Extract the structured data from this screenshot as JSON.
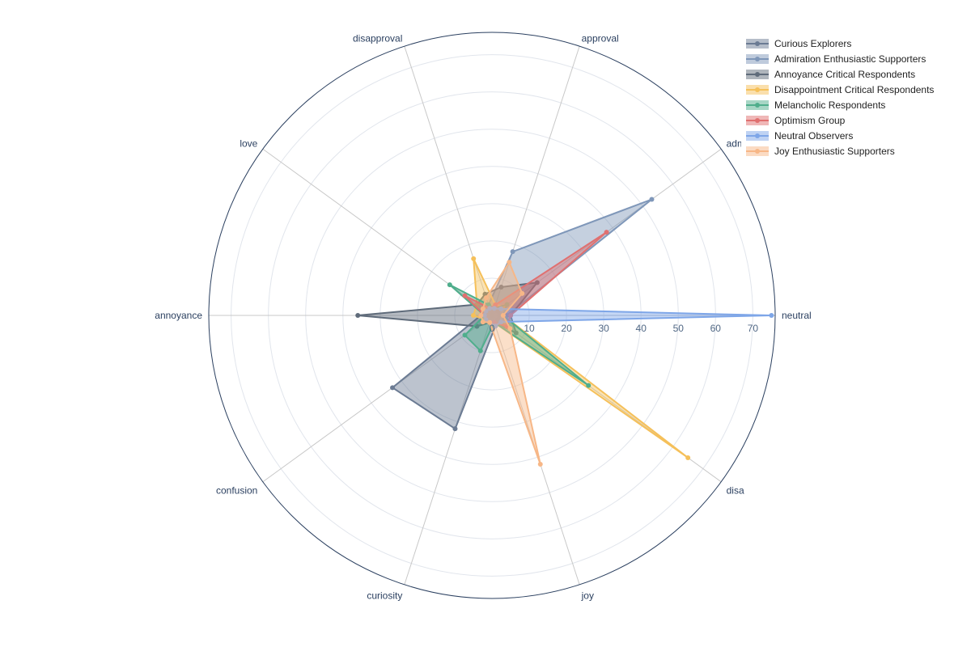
{
  "chart_data": {
    "type": "radar",
    "title": "",
    "axes": [
      "neutral",
      "admiration",
      "approval",
      "disapproval",
      "love",
      "annoyance",
      "confusion",
      "curiosity",
      "joy",
      "disappointment"
    ],
    "axis_label_disappointment_visible": "disa",
    "radial_range": [
      0,
      76
    ],
    "radial_ticks": [
      0,
      10,
      20,
      30,
      40,
      50,
      60,
      70
    ],
    "radial_tick_labels": [
      "0",
      "10",
      "20",
      "30",
      "40",
      "50",
      "60",
      "70"
    ],
    "grid": true,
    "legend_position": "top-right",
    "series": [
      {
        "name": "Curious Explorers",
        "color": "#6b7b93",
        "values": [
          2,
          2,
          2,
          2,
          2,
          3,
          33,
          32,
          3,
          2
        ]
      },
      {
        "name": "Admiration Enthusiastic Supporters",
        "color": "#7f97b9",
        "values": [
          4,
          53,
          18,
          3,
          2,
          2,
          2,
          2,
          2,
          3
        ]
      },
      {
        "name": "Annoyance Critical Respondents",
        "color": "#5f6b7a",
        "values": [
          5,
          15,
          8,
          6,
          5,
          36,
          5,
          2,
          2,
          8
        ]
      },
      {
        "name": "Disappointment Critical Respondents",
        "color": "#f5c05a",
        "values": [
          3,
          4,
          3,
          16,
          5,
          5,
          2,
          2,
          2,
          65
        ]
      },
      {
        "name": "Melancholic Respondents",
        "color": "#4fae8c",
        "values": [
          3,
          5,
          2,
          3,
          14,
          2,
          9,
          10,
          2,
          32
        ]
      },
      {
        "name": "Optimism Group",
        "color": "#e07070",
        "values": [
          5,
          38,
          3,
          2,
          9,
          2,
          2,
          2,
          2,
          5
        ]
      },
      {
        "name": "Neutral Observers",
        "color": "#7ea6e8",
        "values": [
          75,
          3,
          2,
          2,
          2,
          2,
          2,
          2,
          3,
          3
        ]
      },
      {
        "name": "Joy Enthusiastic Supporters",
        "color": "#f7b787",
        "values": [
          3,
          10,
          15,
          5,
          3,
          3,
          3,
          2,
          42,
          6
        ]
      }
    ]
  }
}
